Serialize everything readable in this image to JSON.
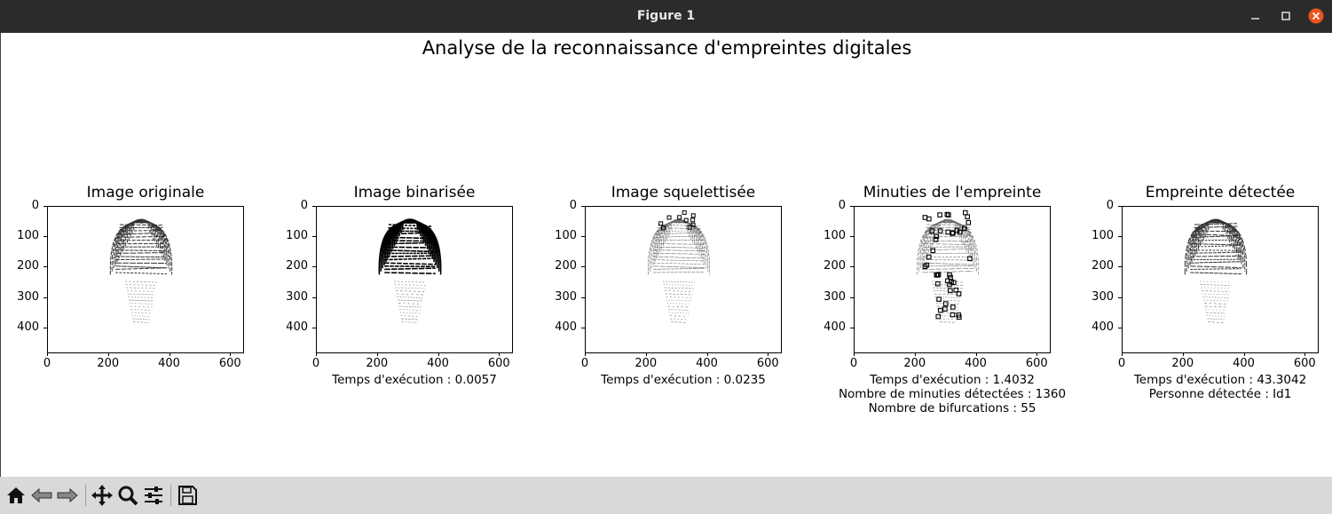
{
  "window": {
    "title": "Figure 1"
  },
  "figure": {
    "suptitle": "Analyse de la reconnaissance d'empreintes digitales"
  },
  "panels": [
    {
      "title": "Image originale",
      "captions": []
    },
    {
      "title": "Image binarisée",
      "captions": [
        "Temps d'exécution : 0.0057"
      ]
    },
    {
      "title": "Image squelettisée",
      "captions": [
        "Temps d'exécution : 0.0235"
      ]
    },
    {
      "title": "Minuties de l'empreinte",
      "captions": [
        "Temps d'exécution : 1.4032",
        "Nombre de minuties détectées : 1360",
        "Nombre de bifurcations : 55"
      ]
    },
    {
      "title": "Empreinte détectée",
      "captions": [
        "Temps d'exécution : 43.3042",
        "Personne détectée : Id1"
      ]
    }
  ],
  "axes": {
    "yticks": [
      "0",
      "100",
      "200",
      "300",
      "400"
    ],
    "xticks": [
      "0",
      "200",
      "400",
      "600"
    ],
    "x_range": [
      0,
      640
    ],
    "y_range": [
      0,
      480
    ]
  },
  "toolbar": {
    "icons": [
      "home-icon",
      "back-arrow-icon",
      "forward-arrow-icon",
      "move-icon",
      "zoom-icon",
      "configure-icon",
      "save-icon"
    ]
  },
  "colors": {
    "titlebar": "#2b2b2b",
    "close": "#e95420",
    "toolbar": "#d9d9d9"
  }
}
